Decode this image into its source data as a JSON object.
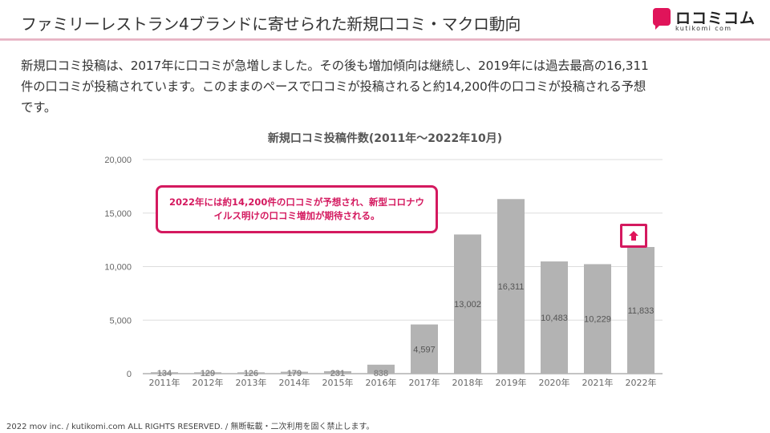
{
  "slide": {
    "title": "ファミリーレストラン4ブランドに寄せられた新規口コミ・マクロ動向",
    "intro_line1": "新規口コミ投稿は、2017年に口コミが急増しました。その後も増加傾向は継続し、2019年には過去最高の16,311",
    "intro_line2": "件の口コミが投稿されています。このままのペースで口コミが投稿されると約14,200件の口コミが投稿される予想",
    "intro_line3": "です。",
    "callout_line1": "2022年には約14,200件の口コミが予想され、新型コロナウ",
    "callout_line2": "イルス明けの口コミ増加が期待される。",
    "footer": "2022 mov inc. / kutikomi.com ALL RIGHTS RESERVED. / 無断転載・二次利用を固く禁止します。"
  },
  "logo": {
    "name": "ロコミコム",
    "sub": "kutikomi com",
    "color": "#e0145a"
  },
  "colors": {
    "accent": "#d4195f",
    "bar": "#b3b3b3",
    "grid": "#dddddd",
    "axis_text": "#666666"
  },
  "chart_data": {
    "type": "bar",
    "title": "新規口コミ投稿件数(2011年～2022年10月)",
    "categories": [
      "2011年",
      "2012年",
      "2013年",
      "2014年",
      "2015年",
      "2016年",
      "2017年",
      "2018年",
      "2019年",
      "2020年",
      "2021年",
      "2022年"
    ],
    "values": [
      134,
      129,
      126,
      179,
      231,
      838,
      4597,
      13002,
      16311,
      10483,
      10229,
      11833
    ],
    "value_labels": [
      "134",
      "129",
      "126",
      "179",
      "231",
      "838",
      "4,597",
      "13,002",
      "16,311",
      "10,483",
      "10,229",
      "11,833"
    ],
    "ylim": [
      0,
      20000
    ],
    "yticks": [
      0,
      5000,
      10000,
      15000,
      20000
    ],
    "ytick_labels": [
      "0",
      "5,000",
      "10,000",
      "15,000",
      "20,000"
    ],
    "grid": true,
    "legend": "none",
    "annotation_icon": "up-arrow-icon"
  }
}
